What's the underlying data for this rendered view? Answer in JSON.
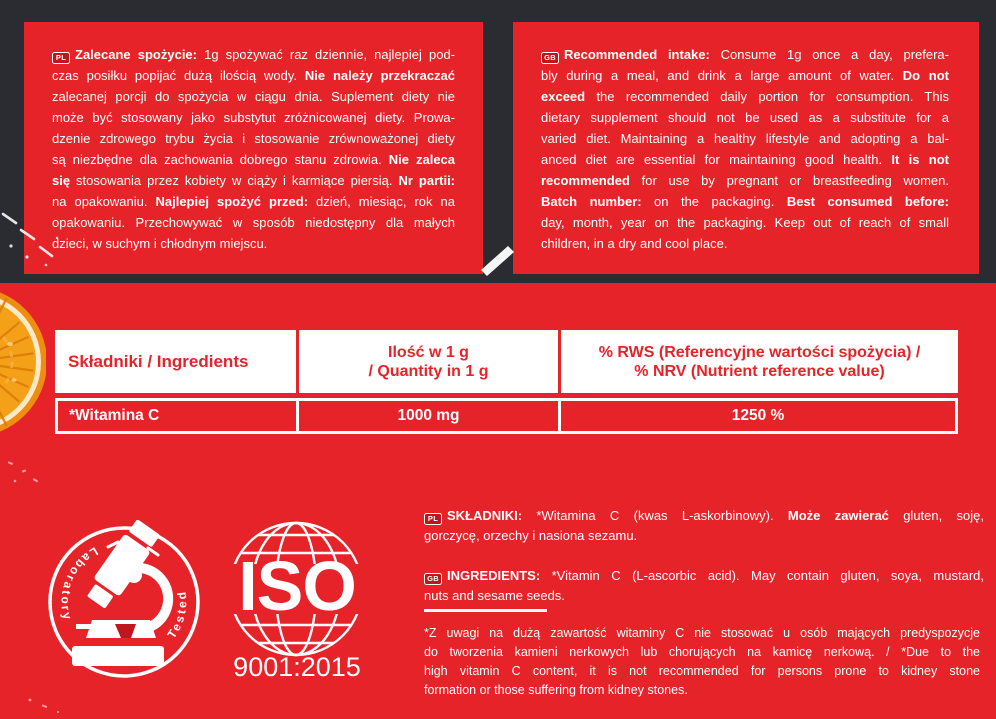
{
  "colors": {
    "red": "#e7232a",
    "dark": "#2a2c31",
    "badge_red": "#bf161c",
    "white": "#ffffff"
  },
  "panel_pl": {
    "badge": "PL",
    "lines": [
      {
        "badge": "PL",
        "text": "**Zalecane spożycie:** 1g spożywać raz dziennie, najlepiej pod-"
      },
      "czas posiłku popijać dużą ilością wody. **Nie należy przekraczać**",
      "zalecanej porcji do spożycia w ciągu dnia. Suplement diety nie",
      "może być stosowany jako substytut zróżnicowanej diety. Prowa-",
      "dzenie zdrowego trybu życia i stosowanie zrównoważonej diety",
      "są niezbędne dla zachowania dobrego stanu zdrowia. **Nie zaleca**",
      "**się** stosowania przez kobiety w ciąży i karmiące piersią. **Nr partii:**",
      "na opakowaniu. **Najlepiej spożyć przed:** dzień, miesiąc, rok na",
      "opakowaniu. Przechowywać w sposób niedostępny dla małych",
      "dzieci, w suchym i chłodnym miejscu."
    ]
  },
  "panel_en": {
    "badge": "GB",
    "lines": [
      {
        "badge": "GB",
        "text": "**Recommended intake:** Consume 1g once a day, prefera-"
      },
      "bly during a meal, and drink a large amount of water. **Do not**",
      "**exceed** the recommended daily portion for consumption. This",
      "dietary supplement should not be used as a substitute for a",
      "varied diet. Maintaining a healthy lifestyle and adopting a bal-",
      "anced diet are essential for maintaining good health. **It is not**",
      "**recommended** for use by pregnant or breastfeeding women.",
      "**Batch number:** on the packaging. **Best consumed before:**",
      "day, month, year on the packaging. Keep out of reach of small",
      "children, in a dry and cool place."
    ]
  },
  "table": {
    "header": {
      "col1": "Składniki / Ingredients",
      "col2_lines": [
        "Ilość w 1 g",
        "/ Quantity in 1 g"
      ],
      "col3_lines": [
        "% RWS (Referencyjne wartości spożycia) /",
        "% NRV (Nutrient reference value)"
      ]
    },
    "row": {
      "ingredient": "*Witamina C",
      "quantity": "1000 mg",
      "nrv": "1250 %"
    }
  },
  "certifications": {
    "lab": {
      "word_left": "Laboratory",
      "word_right": "Tested"
    },
    "iso": {
      "name": "ISO",
      "standard": "9001:2015"
    }
  },
  "ingredients_pl": {
    "lines": [
      {
        "badge": "PL",
        "text": "**SKŁADNIKI:** *Witamina C (kwas L-askorbinowy). **Może zawierać** gluten, soję,"
      },
      "gorczycę, orzechy i nasiona sezamu."
    ]
  },
  "ingredients_en": {
    "lines": [
      {
        "badge": "GB",
        "text": "**INGREDIENTS:** *Vitamin C (L-ascorbic acid). May contain gluten, soya, mustard,"
      },
      "nuts and sesame seeds."
    ]
  },
  "footnote": {
    "lines": [
      "*Z uwagi na dużą zawartość witaminy C nie stosować u osób mających predyspozycje",
      "do tworzenia kamieni nerkowych lub chorujących na kamicę nerkową. / *Due to the",
      "high vitamin C content, it is not recommended for persons prone to kidney stone",
      "formation or those suffering from kidney stones."
    ]
  }
}
